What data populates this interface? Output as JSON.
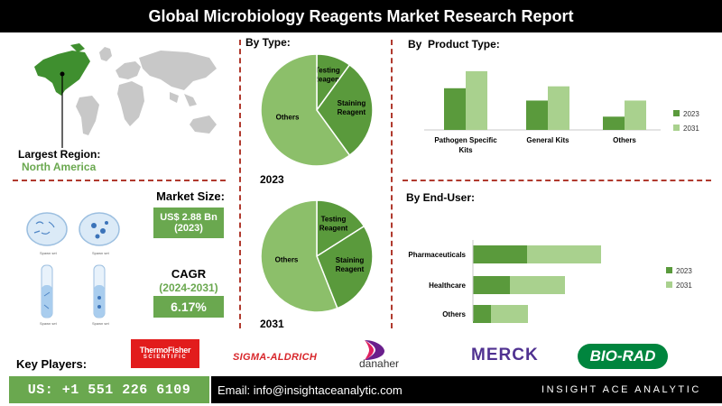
{
  "header": {
    "title": "Global Microbiology Reagents Market Research Report"
  },
  "region": {
    "label": "Largest Region:",
    "value": "North America"
  },
  "market_size": {
    "label": "Market Size:",
    "value": "US$ 2.88 Bn",
    "year": "(2023)"
  },
  "cagr": {
    "label": "CAGR",
    "period": "(2024-2031)",
    "value": "6.17%"
  },
  "key_players": {
    "label": "Key Players:",
    "thermo": [
      "ThermoFisher",
      "SCIENTIFIC"
    ],
    "sigma": "SIGMA-ALDRICH",
    "danaher": "danaher",
    "merck": "MERCK",
    "biorad": "BIO-RAD"
  },
  "illustration": {
    "dish_label": "Spawn set",
    "tube_label": "Spawn set"
  },
  "footer": {
    "phone": "US: +1 551 226 6109",
    "email": "Email: info@insightaceanalytic.com",
    "brand": "INSIGHT ACE ANALYTIC"
  },
  "colors": {
    "dark_green": "#5a9a3c",
    "light_green": "#a9d18e",
    "pie_green": "#8cbf6a",
    "accent_red": "#b03a2e"
  },
  "chart_data": [
    {
      "type": "pie",
      "title": "By Type:",
      "year": "2023",
      "slices": [
        {
          "label": "Testing Reagent",
          "value": 10
        },
        {
          "label": "Staining Reagent",
          "value": 30
        },
        {
          "label": "Others",
          "value": 60
        }
      ]
    },
    {
      "type": "pie",
      "year": "2031",
      "slices": [
        {
          "label": "Testing Reagent",
          "value": 16
        },
        {
          "label": "Staining Reagent",
          "value": 28
        },
        {
          "label": "Others",
          "value": 56
        }
      ]
    },
    {
      "type": "bar",
      "title": "By  Product Type:",
      "categories": [
        "Pathogen Specific Kits",
        "General Kits",
        "Others"
      ],
      "category_lines": [
        [
          "Pathogen Specific",
          "Kits"
        ],
        [
          "General Kits"
        ],
        [
          "Others"
        ]
      ],
      "series": [
        {
          "name": "2023",
          "values": [
            44,
            31,
            14
          ]
        },
        {
          "name": "2031",
          "values": [
            62,
            46,
            31
          ]
        }
      ]
    },
    {
      "type": "bar",
      "orientation": "horizontal-stacked",
      "title": "By End-User:",
      "categories": [
        "Pharmaceuticals",
        "Healthcare",
        "Others"
      ],
      "series": [
        {
          "name": "2023",
          "values": [
            60,
            41,
            20
          ]
        },
        {
          "name": "2031",
          "values": [
            82,
            61,
            41
          ]
        }
      ]
    }
  ]
}
